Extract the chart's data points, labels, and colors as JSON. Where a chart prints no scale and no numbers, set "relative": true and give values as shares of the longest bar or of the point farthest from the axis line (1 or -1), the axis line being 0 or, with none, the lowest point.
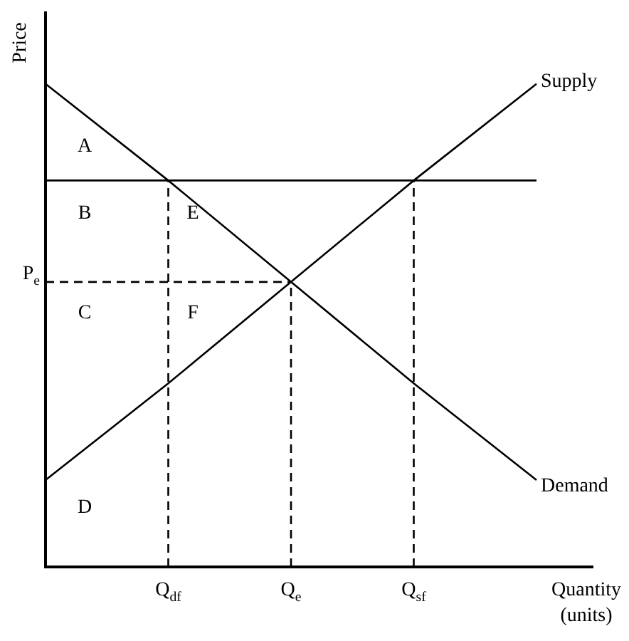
{
  "chart_data": {
    "type": "line",
    "relative": true,
    "xlabel": "Quantity\n(units)",
    "ylabel": "Price",
    "categories": [
      null,
      "Q$_{df}$",
      "Q$_{e}$",
      "Q$_{sf}$",
      null
    ],
    "series": [
      {
        "name": "Supply",
        "color": "#000000",
        "values": [
          0.18,
          0.38,
          0.59,
          0.8,
          1
        ]
      },
      {
        "name": "Demand",
        "color": "#000000",
        "values": [
          1,
          0.8,
          0.59,
          0.38,
          0.18
        ]
      }
    ],
    "ref_lines": [
      {
        "axis": "y",
        "value": 0.8,
        "color": "#000000",
        "line_style": "solid"
      },
      {
        "axis": "y",
        "value": 0.59,
        "label": "P$_{e}$",
        "color": "#000000",
        "line_style": "dashed"
      },
      {
        "axis": "x",
        "value": "Q$_{df}$",
        "color": "#000000",
        "line_style": "dashed"
      },
      {
        "axis": "x",
        "value": "Q$_{e}$",
        "color": "#000000",
        "line_style": "dashed"
      },
      {
        "axis": "x",
        "value": "Q$_{sf}$",
        "color": "#000000",
        "line_style": "dashed"
      }
    ],
    "annotations": [
      "A",
      "B",
      "C",
      "D",
      "E",
      "F"
    ],
    "marker": "none",
    "legend": false
  }
}
